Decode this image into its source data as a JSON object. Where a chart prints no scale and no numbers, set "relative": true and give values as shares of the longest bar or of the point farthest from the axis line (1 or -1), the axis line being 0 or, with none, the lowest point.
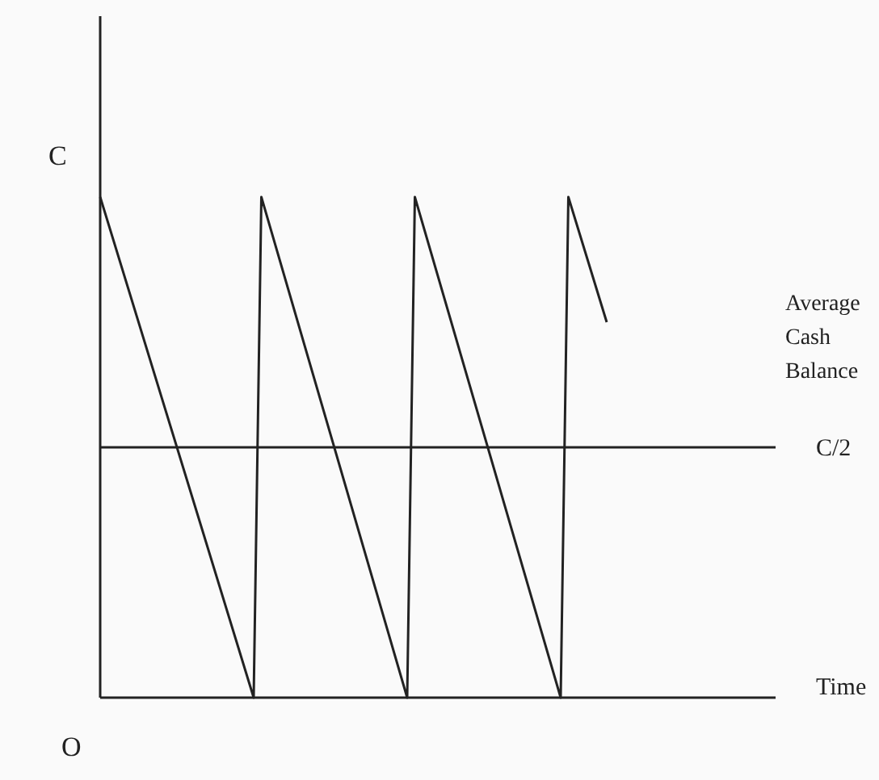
{
  "chart_data": {
    "type": "line",
    "relative": true,
    "ylabel": "C",
    "xlabel": "Time",
    "categories": [
      null,
      null,
      null,
      null,
      null,
      null,
      null,
      null,
      null,
      null,
      null,
      null,
      null,
      null,
      null,
      null,
      null,
      null,
      null,
      null,
      null,
      null,
      null,
      null,
      null,
      null,
      null,
      null,
      null,
      null,
      null,
      null,
      null,
      null,
      null,
      null,
      null,
      null,
      null,
      null,
      null,
      null,
      null,
      null,
      null,
      null,
      null,
      null,
      null,
      null,
      null,
      null,
      null,
      null,
      null,
      null,
      null,
      null,
      null,
      null,
      null,
      null,
      null,
      null,
      null,
      null,
      null,
      null,
      null,
      null,
      null,
      null,
      null,
      null,
      null,
      null,
      null,
      null,
      null,
      null,
      null,
      null,
      null,
      null,
      null,
      null,
      null,
      null,
      null
    ],
    "series": [
      {
        "color": "#222222",
        "values": [
          1,
          null,
          null,
          null,
          null,
          null,
          null,
          null,
          null,
          null,
          null,
          null,
          null,
          null,
          null,
          null,
          null,
          null,
          null,
          null,
          0,
          1,
          null,
          null,
          null,
          null,
          null,
          null,
          null,
          null,
          null,
          null,
          null,
          null,
          null,
          null,
          null,
          null,
          null,
          null,
          0,
          1,
          null,
          null,
          null,
          null,
          null,
          null,
          null,
          null,
          null,
          null,
          null,
          null,
          null,
          null,
          null,
          null,
          null,
          null,
          0,
          1,
          null,
          null,
          null,
          null,
          0.75,
          null,
          null,
          null,
          null,
          null,
          null,
          null,
          null,
          null,
          null,
          null,
          null,
          null,
          null,
          null,
          null,
          null,
          null,
          null,
          null,
          null,
          null
        ]
      }
    ],
    "ref_lines": [
      {
        "axis": "y",
        "value": 0.5,
        "label": "C/2",
        "color": "#222222"
      }
    ],
    "annotations": [
      "O",
      "Average Cash Balance"
    ]
  }
}
